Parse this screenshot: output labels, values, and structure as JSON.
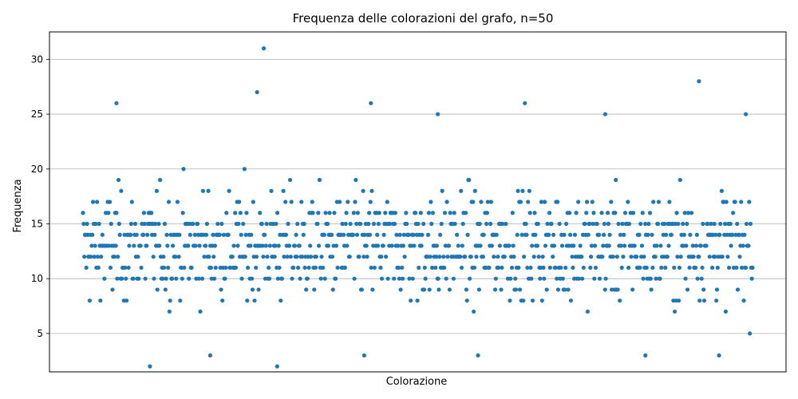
{
  "chart_data": {
    "type": "scatter",
    "title": "Frequenza delle colorazioni del grafo, n=50",
    "xlabel": "Colorazione",
    "ylabel": "Frequenza",
    "ylim": [
      1.5,
      32.5
    ],
    "yticks": [
      5,
      10,
      15,
      20,
      25,
      30
    ],
    "xticks": [],
    "grid": "horizontal",
    "legend": "none",
    "marker_color": "#1f77b4",
    "series": [
      {
        "name": "",
        "distribution": {
          "point_count": 1000,
          "value_range": [
            2,
            31
          ],
          "common_band": [
            9,
            17
          ]
        },
        "notable_points": [
          {
            "x": 0.05,
            "y": 26
          },
          {
            "x": 0.26,
            "y": 27
          },
          {
            "x": 0.27,
            "y": 31
          },
          {
            "x": 0.43,
            "y": 26
          },
          {
            "x": 0.53,
            "y": 25
          },
          {
            "x": 0.66,
            "y": 26
          },
          {
            "x": 0.78,
            "y": 25
          },
          {
            "x": 0.92,
            "y": 28
          },
          {
            "x": 0.99,
            "y": 25
          },
          {
            "x": 0.1,
            "y": 2
          },
          {
            "x": 0.29,
            "y": 2
          },
          {
            "x": 0.19,
            "y": 3
          },
          {
            "x": 0.42,
            "y": 3
          },
          {
            "x": 0.59,
            "y": 3
          },
          {
            "x": 0.84,
            "y": 3
          },
          {
            "x": 0.95,
            "y": 3
          }
        ]
      }
    ]
  }
}
